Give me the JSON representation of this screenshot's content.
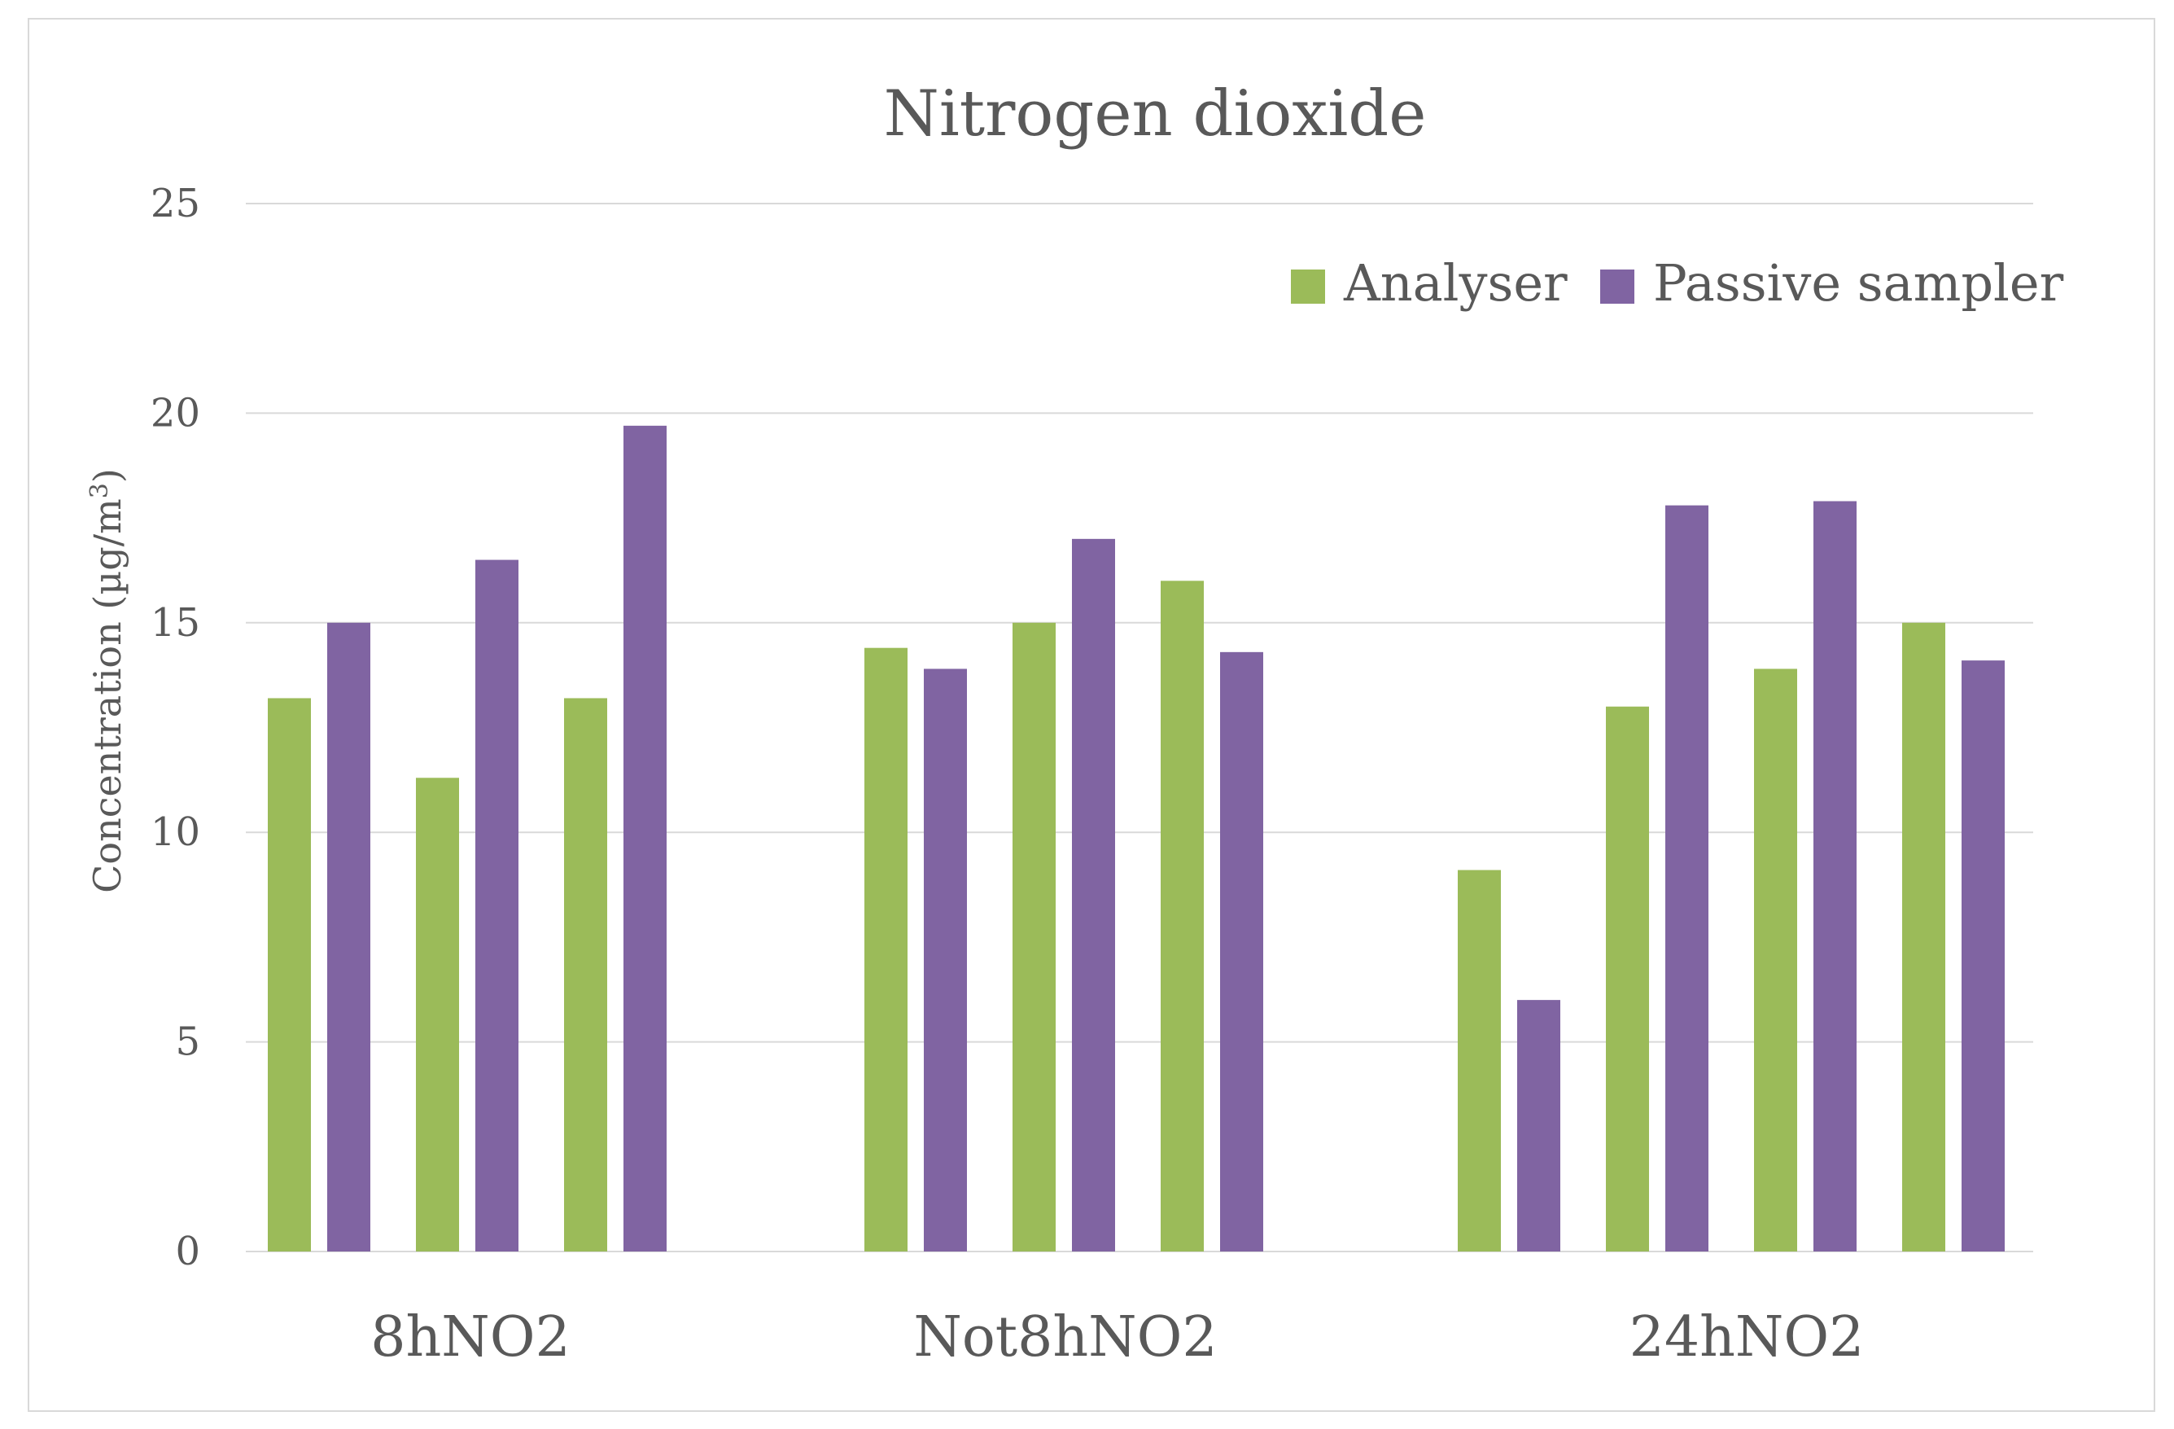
{
  "chart_data": {
    "type": "bar",
    "title": "Nitrogen dioxide",
    "ylabel_main": "Concentration (µg/m",
    "ylabel_superscript": "3",
    "ylabel_close": ")",
    "xlabel": "",
    "ylim": [
      0,
      25
    ],
    "yticks": [
      "0",
      "5",
      "10",
      "15",
      "20",
      "25"
    ],
    "grid": true,
    "legend_position": "top-right",
    "groups": [
      {
        "label": "8hNO2",
        "pairs": [
          {
            "Analyser": 13.2,
            "Passive sampler": 15.0
          },
          {
            "Analyser": 11.3,
            "Passive sampler": 16.5
          },
          {
            "Analyser": 13.2,
            "Passive sampler": 19.7
          }
        ]
      },
      {
        "label": "Not8hNO2",
        "pairs": [
          {
            "Analyser": 14.4,
            "Passive sampler": 13.9
          },
          {
            "Analyser": 15.0,
            "Passive sampler": 17.0
          },
          {
            "Analyser": 16.0,
            "Passive sampler": 14.3
          }
        ]
      },
      {
        "label": "24hNO2",
        "pairs": [
          {
            "Analyser": 9.1,
            "Passive sampler": 6.0
          },
          {
            "Analyser": 13.0,
            "Passive sampler": 17.8
          },
          {
            "Analyser": 13.9,
            "Passive sampler": 17.9
          },
          {
            "Analyser": 15.0,
            "Passive sampler": 14.1
          }
        ]
      }
    ],
    "series": [
      {
        "name": "Analyser",
        "color": "#9bbb59"
      },
      {
        "name": "Passive sampler",
        "color": "#8064a2"
      }
    ]
  }
}
